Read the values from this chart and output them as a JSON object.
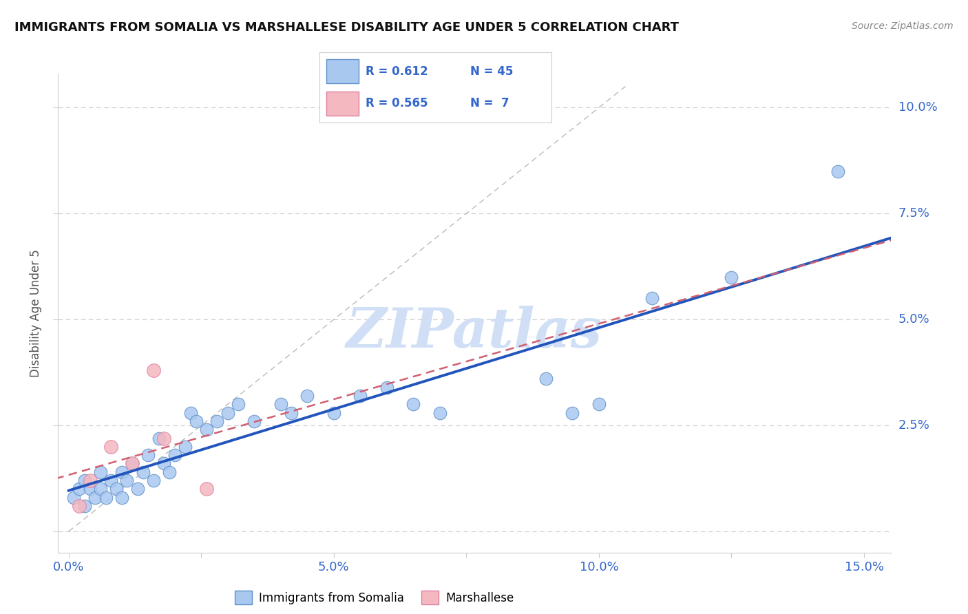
{
  "title": "IMMIGRANTS FROM SOMALIA VS MARSHALLESE DISABILITY AGE UNDER 5 CORRELATION CHART",
  "source": "Source: ZipAtlas.com",
  "ylabel": "Disability Age Under 5",
  "xlim": [
    -0.002,
    0.155
  ],
  "ylim": [
    -0.005,
    0.108
  ],
  "xticks": [
    0.0,
    0.025,
    0.05,
    0.075,
    0.1,
    0.125,
    0.15
  ],
  "xtick_labels": [
    "0.0%",
    "",
    "5.0%",
    "",
    "10.0%",
    "",
    "15.0%"
  ],
  "yticks": [
    0.0,
    0.025,
    0.05,
    0.075,
    0.1
  ],
  "ytick_labels": [
    "",
    "2.5%",
    "5.0%",
    "7.5%",
    "10.0%"
  ],
  "grid_color": "#cccccc",
  "background_color": "#ffffff",
  "somalia_color": "#a8c8f0",
  "marshallese_color": "#f4b8c0",
  "somalia_edge": "#6090c8",
  "marshallese_edge": "#e080a0",
  "trend_somalia_color": "#2255bb",
  "trend_marshallese_color": "#d06070",
  "watermark": "ZIPatlas",
  "watermark_color": "#d0dff5",
  "somalia_x": [
    0.001,
    0.002,
    0.003,
    0.003,
    0.004,
    0.005,
    0.006,
    0.006,
    0.007,
    0.008,
    0.009,
    0.01,
    0.01,
    0.011,
    0.012,
    0.013,
    0.014,
    0.015,
    0.016,
    0.017,
    0.018,
    0.019,
    0.02,
    0.022,
    0.023,
    0.024,
    0.026,
    0.028,
    0.03,
    0.032,
    0.035,
    0.04,
    0.042,
    0.045,
    0.05,
    0.055,
    0.06,
    0.065,
    0.07,
    0.09,
    0.095,
    0.1,
    0.11,
    0.125,
    0.145
  ],
  "somalia_y": [
    0.008,
    0.01,
    0.006,
    0.012,
    0.01,
    0.008,
    0.01,
    0.014,
    0.008,
    0.012,
    0.01,
    0.008,
    0.014,
    0.012,
    0.016,
    0.01,
    0.014,
    0.018,
    0.012,
    0.022,
    0.016,
    0.014,
    0.018,
    0.02,
    0.028,
    0.026,
    0.024,
    0.026,
    0.028,
    0.03,
    0.026,
    0.03,
    0.028,
    0.032,
    0.028,
    0.032,
    0.034,
    0.03,
    0.028,
    0.036,
    0.028,
    0.03,
    0.055,
    0.06,
    0.085
  ],
  "marshallese_x": [
    0.002,
    0.004,
    0.008,
    0.012,
    0.016,
    0.018,
    0.026
  ],
  "marshallese_y": [
    0.006,
    0.012,
    0.02,
    0.016,
    0.038,
    0.022,
    0.01
  ]
}
